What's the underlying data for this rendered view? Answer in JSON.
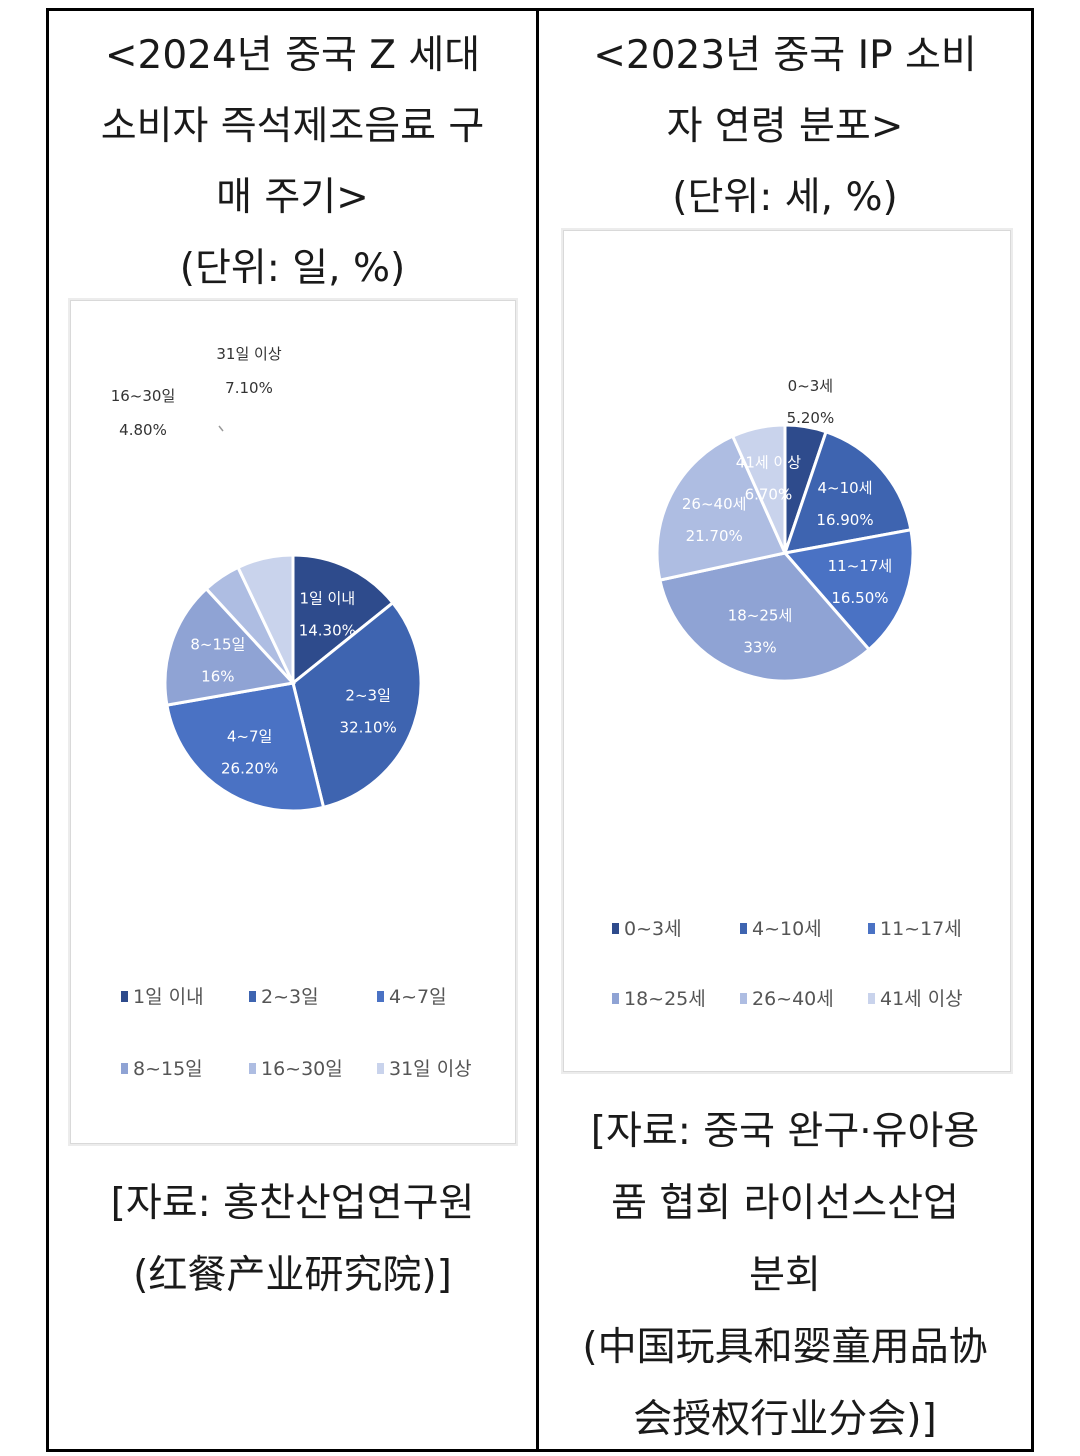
{
  "left_panel": {
    "title": "<2024년 중국 Z 세대\n소비자 즉석제조음료 구\n매 주기>\n(단위: 일, %)",
    "source": "[자료: 홍찬산업연구원\n(红餐产业研究院)]"
  },
  "right_panel": {
    "title": "<2023년 중국 IP 소비\n자 연령 분포>\n(단위: 세, %)",
    "source": "[자료: 중국 완구·유아용\n품 협회 라이선스산업\n분회\n(中国玩具和婴童用品协\n会授权行业分会)]"
  },
  "chart_data": [
    {
      "type": "pie",
      "categories": [
        "1일 이내",
        "2~3일",
        "4~7일",
        "8~15일",
        "16~30일",
        "31일 이상"
      ],
      "values": [
        14.3,
        32.1,
        26.2,
        16,
        4.8,
        7.1
      ],
      "value_labels": [
        "14.30%",
        "32.10%",
        "26.20%",
        "16%",
        "4.80%",
        "7.10%"
      ],
      "colors": [
        "#2e4b8c",
        "#3e64b0",
        "#4a72c4",
        "#8fa3d4",
        "#aebde2",
        "#c9d3ec"
      ],
      "legend_position": "bottom"
    },
    {
      "type": "pie",
      "categories": [
        "0~3세",
        "4~10세",
        "11~17세",
        "18~25세",
        "26~40세",
        "41세 이상"
      ],
      "values": [
        5.2,
        16.9,
        16.5,
        33,
        21.7,
        6.7
      ],
      "value_labels": [
        "5.20%",
        "16.90%",
        "16.50%",
        "33%",
        "21.70%",
        "6.70%"
      ],
      "colors": [
        "#2e4b8c",
        "#3e64b0",
        "#4a72c4",
        "#8fa3d4",
        "#aebde2",
        "#c9d3ec"
      ],
      "legend_position": "bottom"
    }
  ]
}
